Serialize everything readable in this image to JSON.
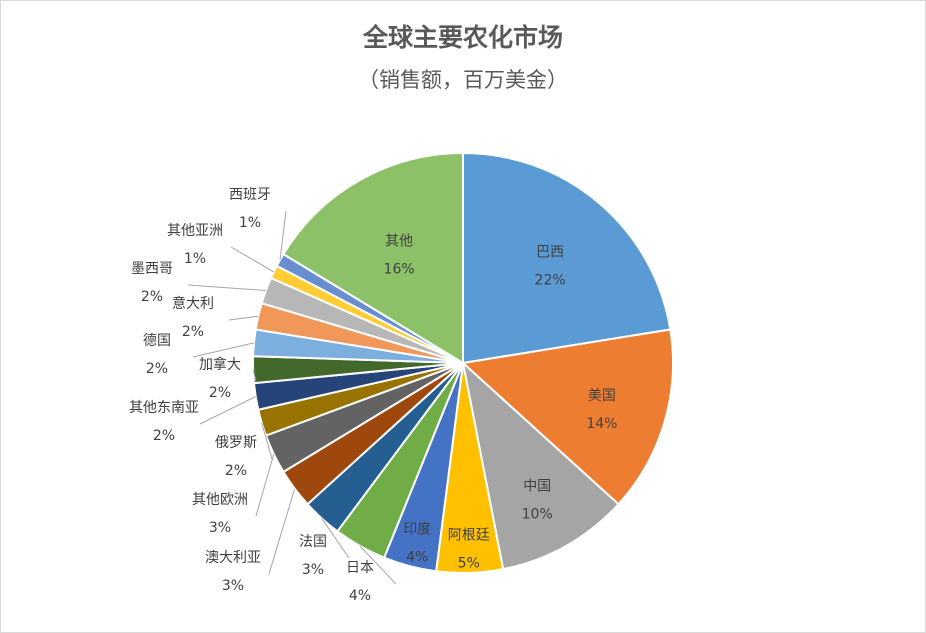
{
  "chart_data": {
    "type": "pie",
    "title": "全球主要农化市场",
    "subtitle": "（销售额，百万美金）",
    "slices": [
      {
        "name": "巴西",
        "value": 22,
        "label": "22%",
        "color": "#5b9bd5"
      },
      {
        "name": "美国",
        "value": 14,
        "label": "14%",
        "color": "#ed7d31"
      },
      {
        "name": "中国",
        "value": 10,
        "label": "10%",
        "color": "#a5a5a5"
      },
      {
        "name": "阿根廷",
        "value": 5,
        "label": "5%",
        "color": "#ffc000"
      },
      {
        "name": "印度",
        "value": 4,
        "label": "4%",
        "color": "#4472c4"
      },
      {
        "name": "日本",
        "value": 4,
        "label": "4%",
        "color": "#70ad47"
      },
      {
        "name": "法国",
        "value": 3,
        "label": "3%",
        "color": "#255e91"
      },
      {
        "name": "澳大利亚",
        "value": 3,
        "label": "3%",
        "color": "#9e480e"
      },
      {
        "name": "其他欧洲",
        "value": 3,
        "label": "3%",
        "color": "#636363"
      },
      {
        "name": "俄罗斯",
        "value": 2,
        "label": "2%",
        "color": "#997300"
      },
      {
        "name": "其他东南亚",
        "value": 2,
        "label": "2%",
        "color": "#264478"
      },
      {
        "name": "加拿大",
        "value": 2,
        "label": "2%",
        "color": "#43682b"
      },
      {
        "name": "德国",
        "value": 2,
        "label": "2%",
        "color": "#7cafdd"
      },
      {
        "name": "意大利",
        "value": 2,
        "label": "2%",
        "color": "#f1975a"
      },
      {
        "name": "墨西哥",
        "value": 2,
        "label": "2%",
        "color": "#b7b7b7"
      },
      {
        "name": "其他亚洲",
        "value": 1,
        "label": "1%",
        "color": "#ffcd33"
      },
      {
        "name": "西班牙",
        "value": 1,
        "label": "1%",
        "color": "#698ed0"
      },
      {
        "name": "其他",
        "value": 16,
        "label": "16%",
        "color": "#8cc168"
      }
    ]
  }
}
